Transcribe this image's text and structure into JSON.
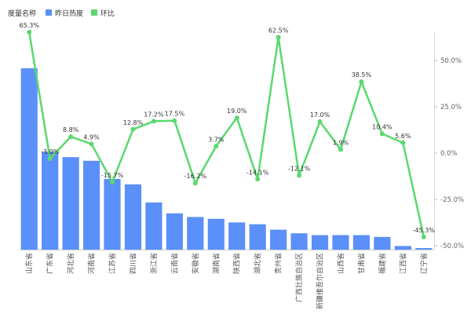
{
  "chart_data": {
    "type": "bar",
    "legend_title": "度量名称",
    "categories": [
      "山东省",
      "广东省",
      "河北省",
      "河南省",
      "江苏省",
      "四川省",
      "浙江省",
      "云南省",
      "安徽省",
      "湖南省",
      "陕西省",
      "湖北省",
      "贵州省",
      "广西壮族自治区",
      "新疆维吾尔自治区",
      "山西省",
      "甘肃省",
      "福建省",
      "江西省",
      "辽宁省"
    ],
    "series": [
      {
        "name": "昨日热度",
        "kind": "bar",
        "color": "#5b8ff9",
        "values": [
          100,
          54,
          51,
          49,
          39,
          36,
          26,
          20,
          18,
          17,
          15,
          14,
          11,
          9,
          8,
          8,
          8,
          7,
          2,
          0
        ]
      },
      {
        "name": "环比",
        "kind": "line",
        "color": "#5ad86e",
        "axis": "right",
        "values": [
          65.3,
          -3.0,
          8.8,
          4.9,
          -15.7,
          12.8,
          17.2,
          17.5,
          -16.2,
          3.7,
          19.0,
          -14.1,
          62.5,
          -12.1,
          17.0,
          1.9,
          38.5,
          10.4,
          5.6,
          -45.3
        ],
        "labels": [
          "65.3%",
          "-3.0%",
          "8.8%",
          "4.9%",
          "-15.7%",
          "12.8%",
          "17.2%",
          "17.5%",
          "-16.2%",
          "3.7%",
          "19.0%",
          "-14.1%",
          "62.5%",
          "-12.1%",
          "17.0%",
          "1.9%",
          "38.5%",
          "10.4%",
          "5.6%",
          "-45.3%"
        ]
      }
    ],
    "y_right": {
      "ticks": [
        "50.0%",
        "25.0%",
        "0.0%",
        "-25.0%",
        "-50.0%"
      ],
      "tick_values": [
        50,
        25,
        0,
        -25,
        -50
      ],
      "range": [
        -50,
        70
      ]
    },
    "y_left": {
      "range": [
        0,
        100
      ]
    },
    "grid": false,
    "legend_position": "top-left"
  }
}
